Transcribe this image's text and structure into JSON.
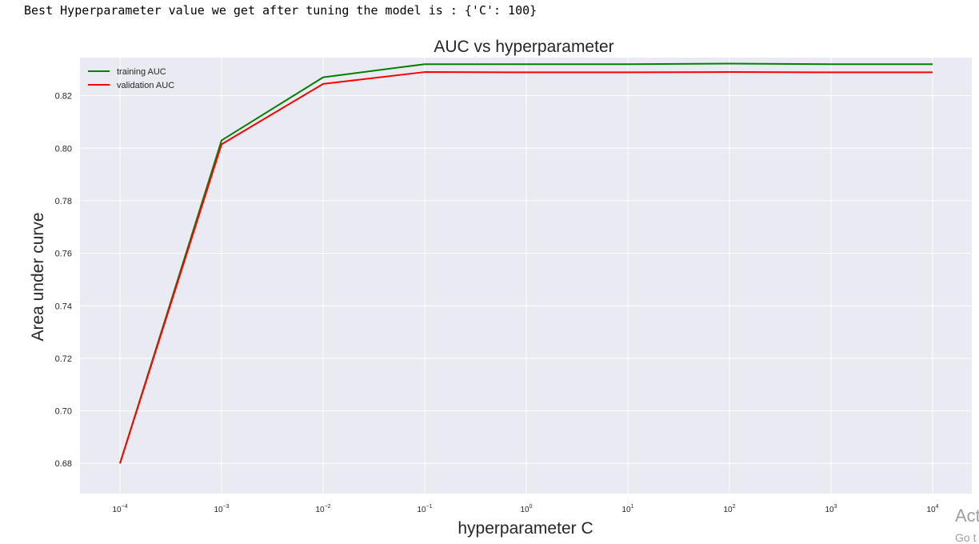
{
  "output": {
    "text": "Best Hyperparameter value we get after tuning the model is : {'C': 100}"
  },
  "colors": {
    "plot_bg": "#eaeaf2",
    "grid": "#ffffff",
    "training": "#008000",
    "validation": "#ff0000"
  },
  "chart_data": {
    "type": "line",
    "title": "AUC vs hyperparameter",
    "xlabel": "hyperparameter C",
    "ylabel": "Area under curve",
    "x_scale": "log",
    "x": [
      0.0001,
      0.001,
      0.01,
      0.1,
      1,
      10,
      100,
      1000,
      10000
    ],
    "x_tick_exponents": [
      "−4",
      "−3",
      "−2",
      "−1",
      "0",
      "1",
      "2",
      "3",
      "4"
    ],
    "y_ticks": [
      "0.68",
      "0.70",
      "0.72",
      "0.74",
      "0.76",
      "0.78",
      "0.80",
      "0.82"
    ],
    "ylim": [
      0.6685,
      0.8345
    ],
    "grid": true,
    "legend_position": "top-left",
    "series": [
      {
        "name": "training AUC",
        "color": "#008000",
        "values": [
          0.68,
          0.803,
          0.827,
          0.832,
          0.832,
          0.832,
          0.8322,
          0.832,
          0.832
        ]
      },
      {
        "name": "validation AUC",
        "color": "#ff0000",
        "values": [
          0.68,
          0.8015,
          0.8245,
          0.829,
          0.8289,
          0.8289,
          0.829,
          0.8289,
          0.8289
        ]
      }
    ]
  },
  "watermark": {
    "line1": "Act",
    "line2": "Go t"
  }
}
